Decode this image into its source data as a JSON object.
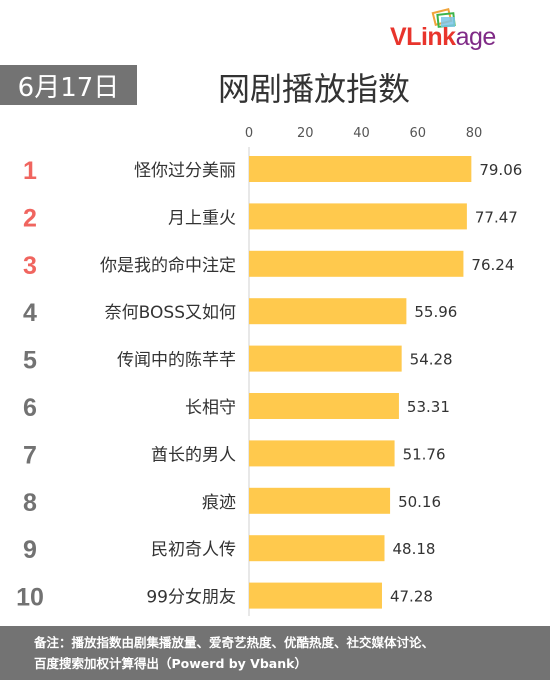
{
  "header": {
    "date": "6月17日",
    "title": "网剧播放指数",
    "logo_text_main": "VLink",
    "logo_text_tail": "age"
  },
  "chart_data": {
    "type": "bar",
    "orientation": "horizontal",
    "title": "网剧播放指数",
    "xticks": [
      0,
      20,
      40,
      60,
      80
    ],
    "xlim": [
      0,
      80
    ],
    "grid": false,
    "bar_color": "#FFC94D",
    "ranks": [
      "1",
      "2",
      "3",
      "4",
      "5",
      "6",
      "7",
      "8",
      "9",
      "10"
    ],
    "rank_colors": [
      "#F0655F",
      "#F0655F",
      "#F0655F",
      "#727272",
      "#727272",
      "#727272",
      "#727272",
      "#727272",
      "#727272",
      "#727272"
    ],
    "categories": [
      "怪你过分美丽",
      "月上重火",
      "你是我的命中注定",
      "奈何BOSS又如何",
      "传闻中的陈芊芊",
      "长相守",
      "酋长的男人",
      "痕迹",
      "民初奇人传",
      "99分女朋友"
    ],
    "values": [
      79.06,
      77.47,
      76.24,
      55.96,
      54.28,
      53.31,
      51.76,
      50.16,
      48.18,
      47.28
    ],
    "value_labels": [
      "79.06",
      "77.47",
      "76.24",
      "55.96",
      "54.28",
      "53.31",
      "51.76",
      "50.16",
      "48.18",
      "47.28"
    ]
  },
  "footer": {
    "line1": "备注：播放指数由剧集播放量、爱奇艺热度、优酷热度、社交媒体讨论、",
    "line2": "百度搜索加权计算得出（Powerd by Vbank）"
  }
}
